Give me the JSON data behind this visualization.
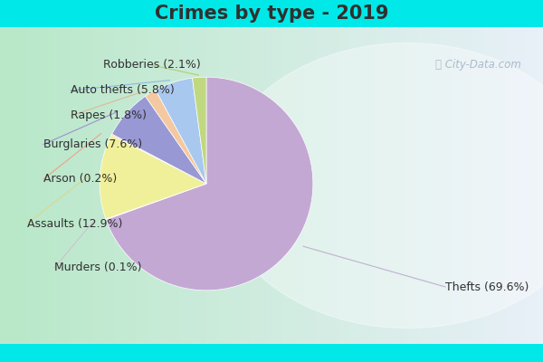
{
  "title": "Crimes by type - 2019",
  "slices": [
    {
      "label": "Thefts",
      "pct": 69.6,
      "color": "#C4A8D4"
    },
    {
      "label": "Murders",
      "pct": 0.1,
      "color": "#C4A8D4"
    },
    {
      "label": "Assaults",
      "pct": 12.9,
      "color": "#F0F09A"
    },
    {
      "label": "Arson",
      "pct": 0.2,
      "color": "#F4C8A8"
    },
    {
      "label": "Burglaries",
      "pct": 7.6,
      "color": "#9898D4"
    },
    {
      "label": "Rapes",
      "pct": 1.8,
      "color": "#F4C8A0"
    },
    {
      "label": "Auto thefts",
      "pct": 5.8,
      "color": "#A8C8F0"
    },
    {
      "label": "Robberies",
      "pct": 2.1,
      "color": "#C0D880"
    }
  ],
  "bg_cyan": "#00E8E8",
  "bg_main_left": "#B8E8C8",
  "bg_main_right": "#E8F0F8",
  "title_fontsize": 15,
  "label_fontsize": 9,
  "title_color": "#303030",
  "label_color": "#303030",
  "watermark_color": "#AABBCC",
  "top_bar_height": 0.075,
  "bottom_bar_height": 0.05,
  "labels": [
    {
      "text": "Thefts (69.6%)",
      "slice_idx": 0,
      "xt": 0.82,
      "yt": 0.18
    },
    {
      "text": "Murders (0.1%)",
      "slice_idx": 1,
      "xt": 0.1,
      "yt": 0.24
    },
    {
      "text": "Assaults (12.9%)",
      "slice_idx": 2,
      "xt": 0.05,
      "yt": 0.38
    },
    {
      "text": "Arson (0.2%)",
      "slice_idx": 3,
      "xt": 0.08,
      "yt": 0.52
    },
    {
      "text": "Burglaries (7.6%)",
      "slice_idx": 4,
      "xt": 0.08,
      "yt": 0.63
    },
    {
      "text": "Rapes (1.8%)",
      "slice_idx": 5,
      "xt": 0.13,
      "yt": 0.72
    },
    {
      "text": "Auto thefts (5.8%)",
      "slice_idx": 6,
      "xt": 0.13,
      "yt": 0.8
    },
    {
      "text": "Robberies (2.1%)",
      "slice_idx": 7,
      "xt": 0.28,
      "yt": 0.88
    }
  ]
}
